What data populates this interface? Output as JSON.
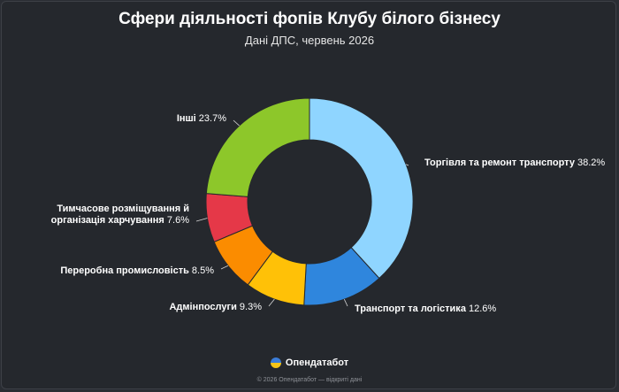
{
  "chart_data": {
    "type": "pie",
    "donut": true,
    "title": "Сфери діяльності фопів Клубу білого бізнесу",
    "subtitle": "Дані ДПС, червень 2026",
    "slices": [
      {
        "label": "Торгівля та ремонт транспорту",
        "value": 38.2,
        "value_text": "38.2%",
        "color": "#8fd5ff"
      },
      {
        "label": "Транспорт та логістика",
        "value": 12.6,
        "value_text": "12.6%",
        "color": "#2f86dd"
      },
      {
        "label": "Адмінпослуги",
        "value": 9.3,
        "value_text": "9.3%",
        "color": "#ffc107"
      },
      {
        "label": "Переробна промисловість",
        "value": 8.5,
        "value_text": "8.5%",
        "color": "#fb8c00"
      },
      {
        "label": "Тимчасове розміщування й організація харчування",
        "value": 7.6,
        "value_text": "7.6%",
        "color": "#e53848"
      },
      {
        "label": "Інші",
        "value": 23.7,
        "value_text": "23.7%",
        "color": "#8dc72a"
      }
    ]
  },
  "footer": {
    "brand": "Опендатабот",
    "copyright": "© 2026 Опендатабот — відкриті дані"
  }
}
